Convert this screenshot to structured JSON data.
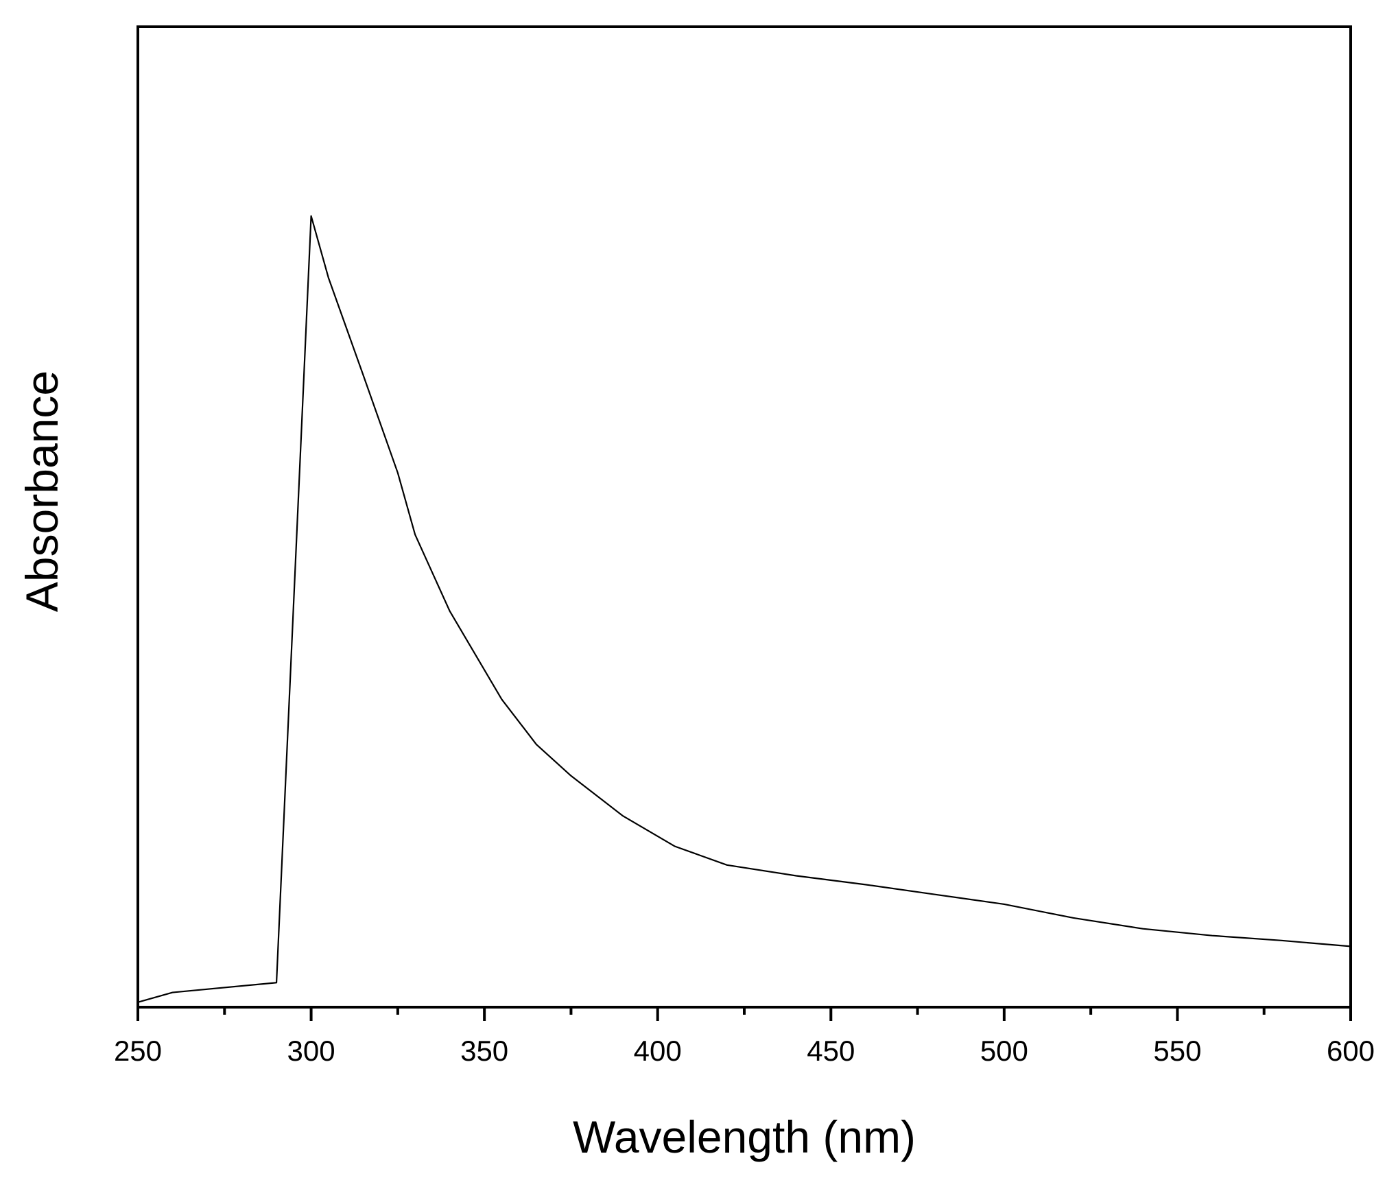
{
  "chart_data": {
    "type": "line",
    "xlabel": "Wavelength (nm)",
    "ylabel": "Absorbance",
    "x": [
      250,
      260,
      290,
      300,
      305,
      315,
      325,
      330,
      340,
      355,
      365,
      375,
      390,
      405,
      420,
      440,
      460,
      480,
      500,
      520,
      540,
      560,
      580,
      600
    ],
    "series": [
      {
        "color": "#000000",
        "values": [
          0.005,
          0.015,
          0.025,
          0.807,
          0.744,
          0.645,
          0.545,
          0.482,
          0.404,
          0.314,
          0.268,
          0.236,
          0.195,
          0.164,
          0.145,
          0.134,
          0.125,
          0.115,
          0.105,
          0.091,
          0.08,
          0.073,
          0.068,
          0.062
        ]
      }
    ],
    "xlim": [
      250,
      600
    ],
    "xticks": [
      250,
      300,
      350,
      400,
      450,
      500,
      550,
      600
    ],
    "xminorticks": [
      275,
      325,
      375,
      425,
      475,
      525,
      575
    ],
    "ylim": [
      0,
      1
    ]
  }
}
